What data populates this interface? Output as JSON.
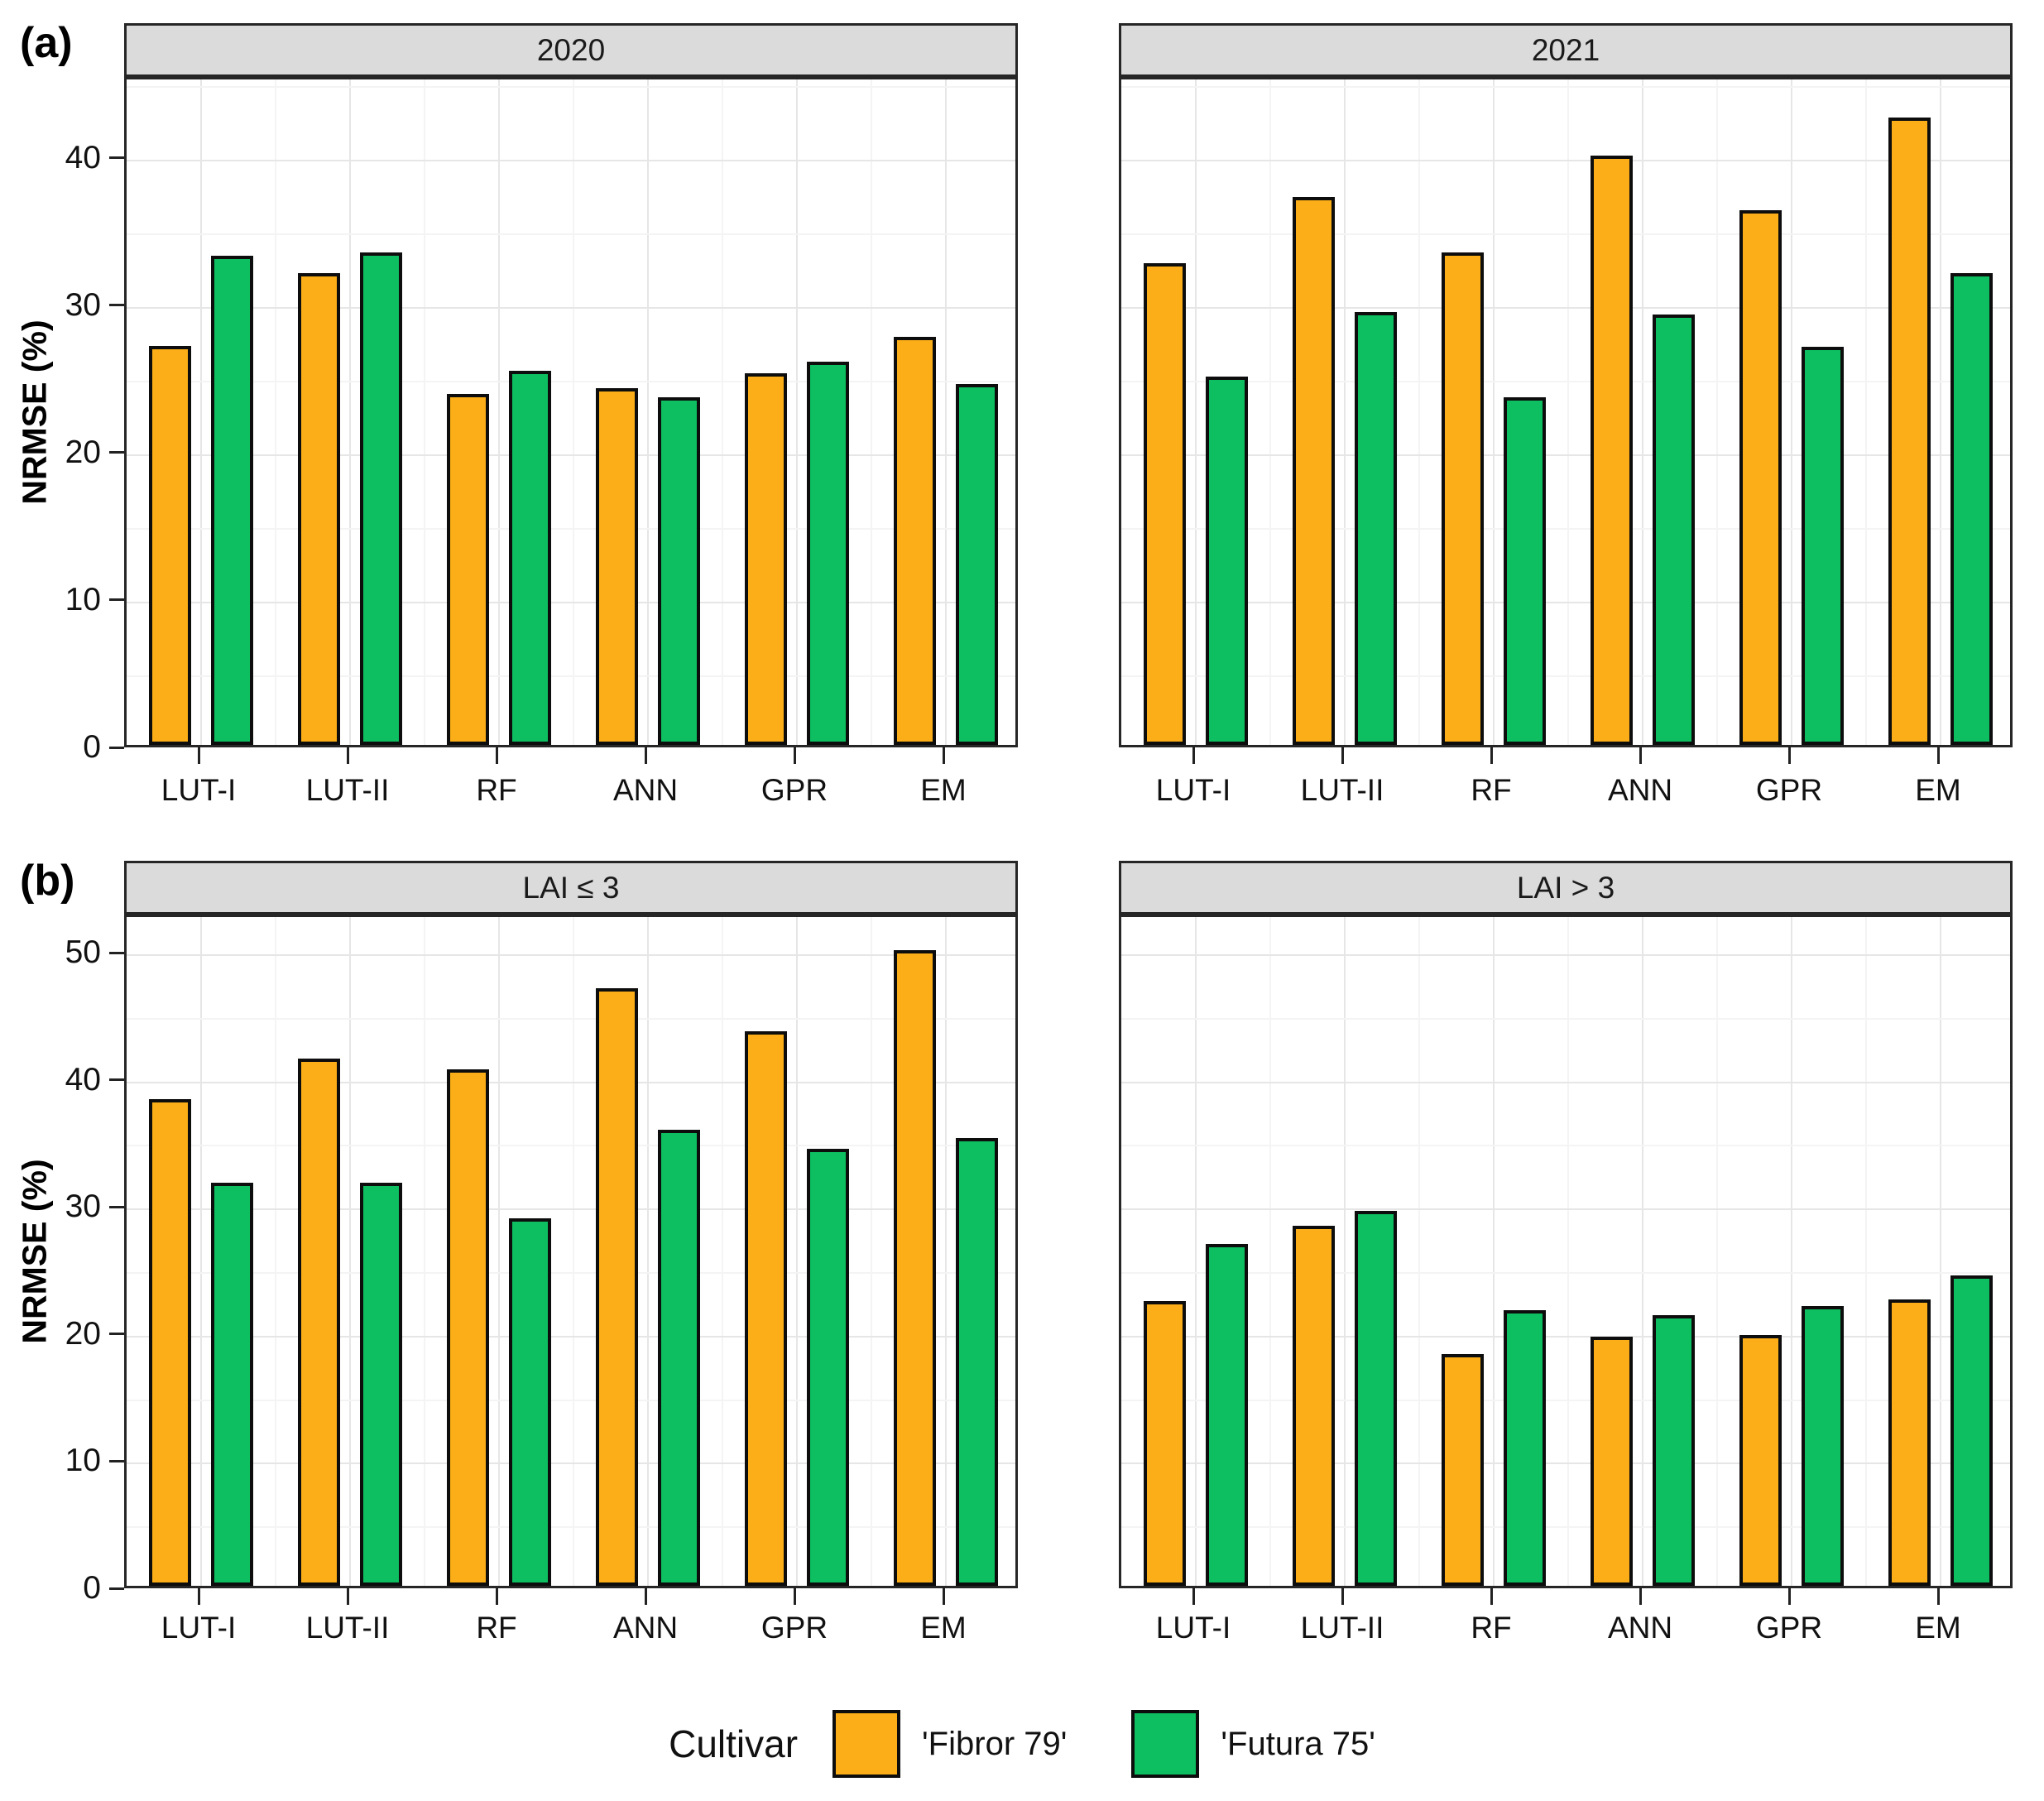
{
  "legend": {
    "title": "Cultivar",
    "items": [
      {
        "label": "'Fibror 79'",
        "color": "#FBAE17"
      },
      {
        "label": "'Futura 75'",
        "color": "#0DBF61"
      }
    ]
  },
  "chart_data": [
    {
      "type": "bar",
      "panel_label": "(a)",
      "ylabel": "NRMSE (%)",
      "ylim": [
        0,
        45.5
      ],
      "yticks": [
        0,
        10,
        20,
        30,
        40
      ],
      "grid": "major and minor, light gray, on white panel",
      "legend_position": "bottom",
      "categories": [
        "LUT-I",
        "LUT-II",
        "RF",
        "ANN",
        "GPR",
        "EM"
      ],
      "facets": [
        {
          "label": "2020",
          "series": [
            {
              "name": "'Fibror 79'",
              "color": "#FBAE17",
              "values": [
                27.1,
                32.0,
                23.8,
                24.2,
                25.2,
                27.7
              ]
            },
            {
              "name": "'Futura 75'",
              "color": "#0DBF61",
              "values": [
                33.2,
                33.4,
                25.4,
                23.6,
                26.0,
                24.5
              ]
            }
          ]
        },
        {
          "label": "2021",
          "series": [
            {
              "name": "'Fibror 79'",
              "color": "#FBAE17",
              "values": [
                32.7,
                37.2,
                33.4,
                40.0,
                36.3,
                42.6
              ]
            },
            {
              "name": "'Futura 75'",
              "color": "#0DBF61",
              "values": [
                25.0,
                29.4,
                23.6,
                29.2,
                27.0,
                32.0
              ]
            }
          ]
        }
      ]
    },
    {
      "type": "bar",
      "panel_label": "(b)",
      "ylabel": "NRMSE (%)",
      "ylim": [
        0,
        53
      ],
      "yticks": [
        0,
        10,
        20,
        30,
        40,
        50
      ],
      "grid": "major and minor, light gray, on white panel",
      "legend_position": "bottom",
      "categories": [
        "LUT-I",
        "LUT-II",
        "RF",
        "ANN",
        "GPR",
        "EM"
      ],
      "facets": [
        {
          "label": "LAI ≤ 3",
          "series": [
            {
              "name": "'Fibror 79'",
              "color": "#FBAE17",
              "values": [
                38.3,
                41.5,
                40.6,
                47.0,
                43.6,
                50.0
              ]
            },
            {
              "name": "'Futura 75'",
              "color": "#0DBF61",
              "values": [
                31.7,
                31.7,
                28.9,
                35.9,
                34.4,
                35.2
              ]
            }
          ]
        },
        {
          "label": "LAI > 3",
          "series": [
            {
              "name": "'Fibror 79'",
              "color": "#FBAE17",
              "values": [
                22.4,
                28.3,
                18.2,
                19.6,
                19.7,
                22.5
              ]
            },
            {
              "name": "'Futura 75'",
              "color": "#0DBF61",
              "values": [
                26.9,
                29.5,
                21.7,
                21.3,
                22.0,
                24.4
              ]
            }
          ]
        }
      ]
    }
  ]
}
